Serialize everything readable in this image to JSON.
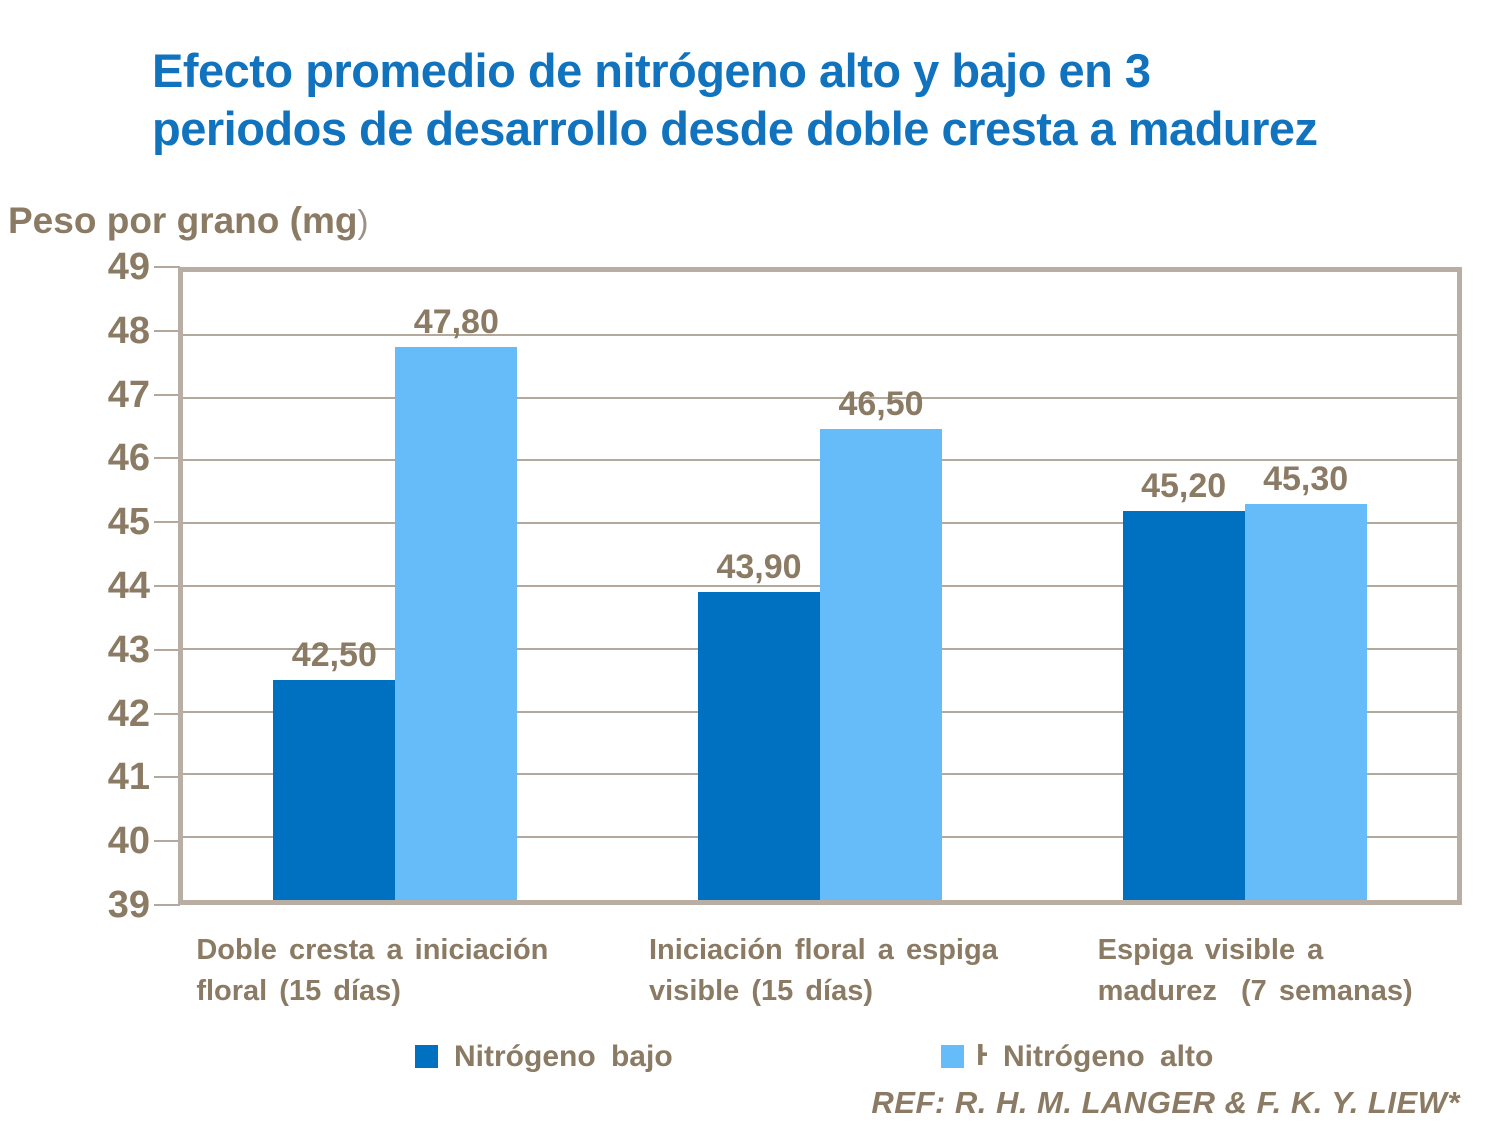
{
  "title": "Efecto promedio de nitrógeno alto y bajo en 3\nperiodos de desarrollo desde doble cresta a madurez",
  "y_axis": {
    "title": "Peso por grano (mg",
    "paren": ")"
  },
  "chart_data": {
    "type": "bar",
    "title": "Efecto promedio de nitrógeno alto y bajo en 3 periodos de desarrollo desde doble cresta a madurez",
    "ylabel": "Peso por grano (mg)",
    "xlabel": "",
    "ylim": [
      39,
      49
    ],
    "yticks": [
      39,
      40,
      41,
      42,
      43,
      44,
      45,
      46,
      47,
      48,
      49
    ],
    "grid": true,
    "legend_position": "bottom",
    "categories": [
      "Doble cresta a iniciación\nfloral (15 días)",
      "Iniciación floral a espiga\nvisible (15 días)",
      "Espiga visible a\nmadurez  (7 semanas)"
    ],
    "series": [
      {
        "name": "Nitrógeno bajo",
        "color": "#0071C1",
        "values": [
          42.5,
          43.9,
          45.2
        ],
        "labels": [
          "42,50",
          "43,90",
          "45,20"
        ]
      },
      {
        "name": "Nitrógeno alto",
        "color": "#66BCF8",
        "values": [
          47.8,
          46.5,
          45.3
        ],
        "labels": [
          "47,80",
          "46,50",
          "45,30"
        ]
      }
    ]
  },
  "legend": {
    "stray_glyph": "H"
  },
  "footer": {
    "reference": "REF: R. H. M. LANGER & F. K. Y. LIEW*"
  },
  "colors": {
    "title_blue": "#1173BE",
    "text_brown": "#8B7B64",
    "gridline": "#B3A89C",
    "frame_border": "#B8AEA3",
    "series_dark": "#0071C1",
    "series_light": "#66BCF8"
  }
}
